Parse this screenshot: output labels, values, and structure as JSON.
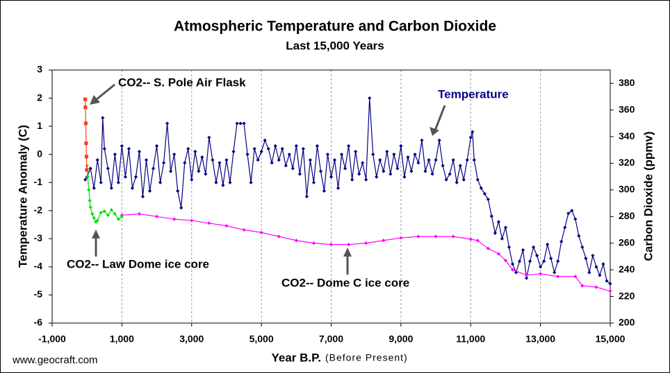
{
  "chart_data": {
    "type": "line",
    "title": "Atmospheric Temperature and Carbon Dioxide",
    "subtitle": "Last 15,000 Years",
    "xlabel": "Year B.P.",
    "xlabel_note": "(Before Present)",
    "ylabel": "Temperature Anomaly (C)",
    "y2label": "Carbon Dioxide (ppmv)",
    "xlim": [
      -1000,
      15000
    ],
    "xticks": [
      {
        "value": -1000,
        "label": "-1,000"
      },
      {
        "value": 1000,
        "label": "1,000"
      },
      {
        "value": 3000,
        "label": "3,000"
      },
      {
        "value": 5000,
        "label": "5,000"
      },
      {
        "value": 7000,
        "label": "7,000"
      },
      {
        "value": 9000,
        "label": "9,000"
      },
      {
        "value": 11000,
        "label": "11,000"
      },
      {
        "value": 13000,
        "label": "13,000"
      },
      {
        "value": 15000,
        "label": "15,000"
      }
    ],
    "ylim": [
      -6,
      3
    ],
    "yticks": [
      -6,
      -5,
      -4,
      -3,
      -2,
      -1,
      0,
      1,
      2,
      3
    ],
    "y2lim": [
      200,
      390
    ],
    "y2ticks": [
      200,
      220,
      240,
      260,
      280,
      300,
      320,
      340,
      360,
      380
    ],
    "grid": true,
    "series": [
      {
        "name": "Temperature",
        "color": "#000080",
        "axis": "y",
        "marker": "diamond",
        "x": [
          -50,
          0,
          100,
          200,
          300,
          400,
          450,
          500,
          600,
          700,
          800,
          900,
          1000,
          1100,
          1200,
          1300,
          1400,
          1500,
          1600,
          1700,
          1800,
          1900,
          2000,
          2100,
          2200,
          2300,
          2400,
          2500,
          2600,
          2700,
          2800,
          2900,
          3000,
          3100,
          3200,
          3300,
          3400,
          3500,
          3600,
          3700,
          3800,
          3900,
          4000,
          4100,
          4200,
          4300,
          4400,
          4500,
          4600,
          4700,
          4800,
          4900,
          5000,
          5100,
          5200,
          5300,
          5400,
          5500,
          5600,
          5700,
          5800,
          5900,
          6000,
          6100,
          6200,
          6300,
          6400,
          6500,
          6600,
          6700,
          6800,
          6900,
          7000,
          7100,
          7200,
          7300,
          7400,
          7500,
          7600,
          7700,
          7800,
          7900,
          8000,
          8100,
          8200,
          8300,
          8400,
          8500,
          8600,
          8700,
          8800,
          8900,
          9000,
          9100,
          9200,
          9300,
          9400,
          9500,
          9600,
          9700,
          9800,
          9900,
          10000,
          10100,
          10200,
          10300,
          10400,
          10500,
          10600,
          10700,
          10800,
          10900,
          11000,
          11050,
          11100,
          11200,
          11300,
          11400,
          11500,
          11600,
          11700,
          11800,
          11900,
          12000,
          12100,
          12200,
          12300,
          12400,
          12500,
          12600,
          12700,
          12800,
          12900,
          13000,
          13100,
          13200,
          13300,
          13400,
          13500,
          13600,
          13700,
          13800,
          13900,
          14000,
          14100,
          14200,
          14300,
          14400,
          14500,
          14600,
          14700,
          14800,
          14900,
          15000
        ],
        "values": [
          -0.9,
          -0.8,
          -0.5,
          -1.2,
          -0.2,
          -1.0,
          1.3,
          0.2,
          -0.5,
          -1.2,
          0.0,
          -1.0,
          0.3,
          -0.8,
          0.2,
          -1.2,
          -0.8,
          0.1,
          -1.5,
          -0.2,
          -1.3,
          -0.5,
          0.3,
          -1.0,
          -0.3,
          1.1,
          -0.6,
          0.0,
          -1.3,
          -1.9,
          -0.3,
          0.2,
          -0.9,
          0.1,
          -0.6,
          -0.1,
          -0.7,
          0.6,
          -0.2,
          -1.0,
          -0.3,
          -1.1,
          -0.2,
          -1.0,
          0.1,
          1.1,
          1.1,
          1.1,
          0.0,
          -1.0,
          0.2,
          -0.2,
          0.1,
          0.5,
          0.2,
          -0.3,
          0.3,
          -0.2,
          0.2,
          -0.4,
          0.0,
          -0.5,
          0.3,
          -0.7,
          0.2,
          -1.5,
          -0.2,
          -1.0,
          0.3,
          -0.6,
          -1.3,
          0.0,
          -0.8,
          -0.2,
          -1.2,
          0.0,
          -0.5,
          0.3,
          -0.9,
          0.1,
          -0.7,
          -0.3,
          -0.9,
          2.0,
          0.0,
          -0.8,
          -0.2,
          -0.6,
          0.1,
          -0.7,
          0.0,
          -0.5,
          0.3,
          -0.8,
          -0.1,
          -0.6,
          0.0,
          -0.3,
          0.5,
          -0.6,
          -0.2,
          -0.7,
          -0.2,
          0.5,
          -0.4,
          -0.9,
          -0.7,
          -0.2,
          -1.0,
          -0.4,
          -0.9,
          -0.2,
          0.6,
          0.8,
          -0.2,
          -0.9,
          -1.2,
          -1.4,
          -1.6,
          -2.2,
          -2.8,
          -2.4,
          -3.0,
          -2.6,
          -3.3,
          -3.9,
          -4.2,
          -3.8,
          -3.4,
          -4.4,
          -3.8,
          -3.3,
          -3.6,
          -4.0,
          -3.8,
          -3.2,
          -3.7,
          -4.2,
          -3.8,
          -3.1,
          -2.6,
          -2.1,
          -2.0,
          -2.3,
          -2.9,
          -3.3,
          -3.7,
          -4.2,
          -3.6,
          -4.0,
          -4.3,
          -3.9,
          -4.5,
          -4.6
        ]
      },
      {
        "name": "CO2-- Dome C ice core",
        "color": "#ff00ff",
        "axis": "y2",
        "marker": "diamond",
        "x": [
          1000,
          1500,
          2000,
          2500,
          3000,
          3500,
          4000,
          4500,
          5000,
          5500,
          6000,
          6500,
          7000,
          7500,
          8000,
          8500,
          9000,
          9500,
          10000,
          10500,
          11000,
          11200,
          11500,
          11800,
          12000,
          12200,
          12600,
          13000,
          13500,
          14000,
          14200,
          14600,
          15000
        ],
        "values": [
          281,
          282,
          280,
          278,
          277,
          275,
          273,
          270,
          268,
          265,
          262,
          260,
          259,
          259,
          260,
          262,
          264,
          265,
          265,
          265,
          263,
          262,
          256,
          252,
          247,
          240,
          236,
          237,
          235,
          235,
          228,
          227,
          224
        ]
      },
      {
        "name": "CO2-- Law Dome ice core",
        "color": "#00e000",
        "axis": "y2",
        "marker": "diamond",
        "x": [
          0,
          20,
          50,
          80,
          100,
          150,
          200,
          250,
          300,
          400,
          500,
          600,
          700,
          800,
          900,
          1000
        ],
        "values": [
          318,
          310,
          300,
          292,
          287,
          282,
          279,
          276,
          277,
          283,
          284,
          281,
          285,
          282,
          278,
          280
        ]
      },
      {
        "name": "CO2-- S. Pole Air Flask",
        "color": "#ff4020",
        "axis": "y2",
        "marker": "square",
        "x": [
          -7,
          -15,
          -25,
          -35,
          -45,
          -50
        ],
        "values": [
          315,
          325,
          335,
          350,
          362,
          368
        ]
      }
    ],
    "annotations": [
      "CO2-- S. Pole Air Flask",
      "Temperature",
      "CO2-- Law Dome ice core",
      "CO2-- Dome C ice core"
    ],
    "source": "www.geocraft.com"
  }
}
